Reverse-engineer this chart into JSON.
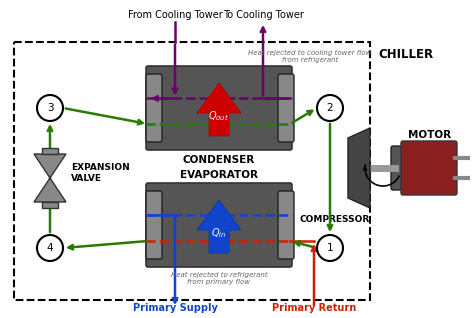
{
  "bg_color": "#ffffff",
  "chiller_label": "CHILLER",
  "condenser_label": "CONDENSER",
  "evaporator_label": "EVAPORATOR",
  "compressor_label": "COMPRESSOR",
  "motor_label": "MOTOR",
  "expansion_label": "EXPANSION\nVALVE",
  "from_cooling": "From Cooling Tower",
  "to_cooling": "To Cooling Tower",
  "primary_supply": "Primary Supply",
  "primary_return": "Primary Return",
  "heat_cooling_text": "Heat rejected to cooling tower flow\nfrom refrigerant",
  "heat_primary_text": "Heat rejected to refrigerant\nfrom primary flow",
  "q_out_text": "$Q_{out}$",
  "q_in_text": "$Q_{in}$",
  "green": "#2a7a00",
  "purple": "#6a006a",
  "blue": "#1144cc",
  "red": "#cc2200",
  "dark_gray": "#555555",
  "mid_gray": "#888888",
  "node_fill": "#ffffff",
  "motor_red": "#8B2020",
  "lw": 1.8
}
